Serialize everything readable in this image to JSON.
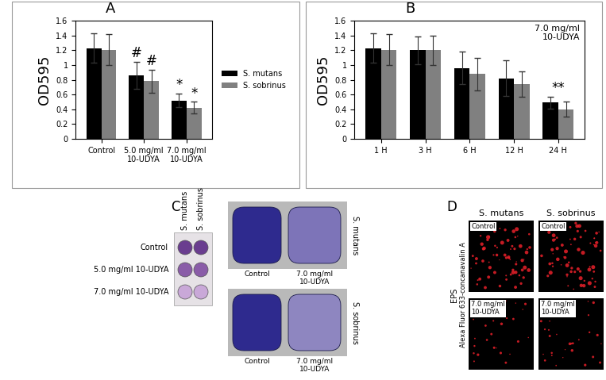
{
  "chart_data": [
    {
      "type": "bar",
      "title": "A",
      "categories": [
        "Control",
        "5.0 mg/ml\n10-UDYA",
        "7.0 mg/ml\n10-UDYA"
      ],
      "series": [
        {
          "name": "S. mutans",
          "color": "#000000",
          "values": [
            1.23,
            0.86,
            0.52
          ],
          "errors": [
            0.2,
            0.18,
            0.09
          ]
        },
        {
          "name": "S. sobrinus",
          "color": "#808080",
          "values": [
            1.21,
            0.78,
            0.42
          ],
          "errors": [
            0.21,
            0.16,
            0.08
          ]
        }
      ],
      "ylabel": "OD595",
      "ylim": [
        0,
        1.6
      ],
      "yticks": [
        0,
        0.2,
        0.4,
        0.6,
        0.8,
        1,
        1.2,
        1.4,
        1.6
      ],
      "legend": "right",
      "annotations": [
        {
          "text": "#",
          "category": 1,
          "series": "S. mutans"
        },
        {
          "text": "#",
          "category": 1,
          "series": "S. sobrinus"
        },
        {
          "text": "*",
          "category": 2,
          "series": "S. mutans"
        },
        {
          "text": "*",
          "category": 2,
          "series": "S. sobrinus"
        }
      ]
    },
    {
      "type": "bar",
      "title": "B",
      "categories": [
        "1 H",
        "3 H",
        "6 H",
        "12 H",
        "24 H"
      ],
      "series": [
        {
          "color": "#000000",
          "values": [
            1.23,
            1.2,
            0.96,
            0.82,
            0.49
          ],
          "errors": [
            0.2,
            0.19,
            0.22,
            0.24,
            0.08
          ]
        },
        {
          "color": "#808080",
          "values": [
            1.21,
            1.2,
            0.88,
            0.74,
            0.4
          ],
          "errors": [
            0.21,
            0.2,
            0.22,
            0.17,
            0.1
          ]
        }
      ],
      "ylabel": "OD595",
      "ylim": [
        0,
        1.6
      ],
      "yticks": [
        0,
        0.2,
        0.4,
        0.6,
        0.8,
        1,
        1.2,
        1.4,
        1.6
      ],
      "annotations": [
        {
          "text": "**",
          "category": 4
        },
        {
          "text": "7.0 mg/ml\n10-UDYA"
        }
      ]
    }
  ],
  "photo_panels": [
    {
      "label": "C",
      "column_labels": [
        "S. mutans",
        "S. sobrinus"
      ],
      "row_labels": [
        "Control",
        "5.0 mg/ml 10-UDYA",
        "7.0 mg/ml 10-UDYA"
      ],
      "tooth_column_labels": [
        "Control",
        "7.0 mg/ml\n10-UDYA"
      ],
      "tooth_row_labels": [
        "S. mutans",
        "S. sobrinus"
      ]
    },
    {
      "label": "D",
      "column_labels": [
        "S. mutans",
        "S. sobrinus"
      ],
      "side_label": [
        "EPS",
        "Alexa Fluor 633-concanavalin A"
      ],
      "image_labels": [
        [
          "Control",
          "Control"
        ],
        [
          "7.0 mg/ml\n10-UDYA",
          "7.0 mg/ml\n10-UDYA"
        ]
      ]
    }
  ]
}
